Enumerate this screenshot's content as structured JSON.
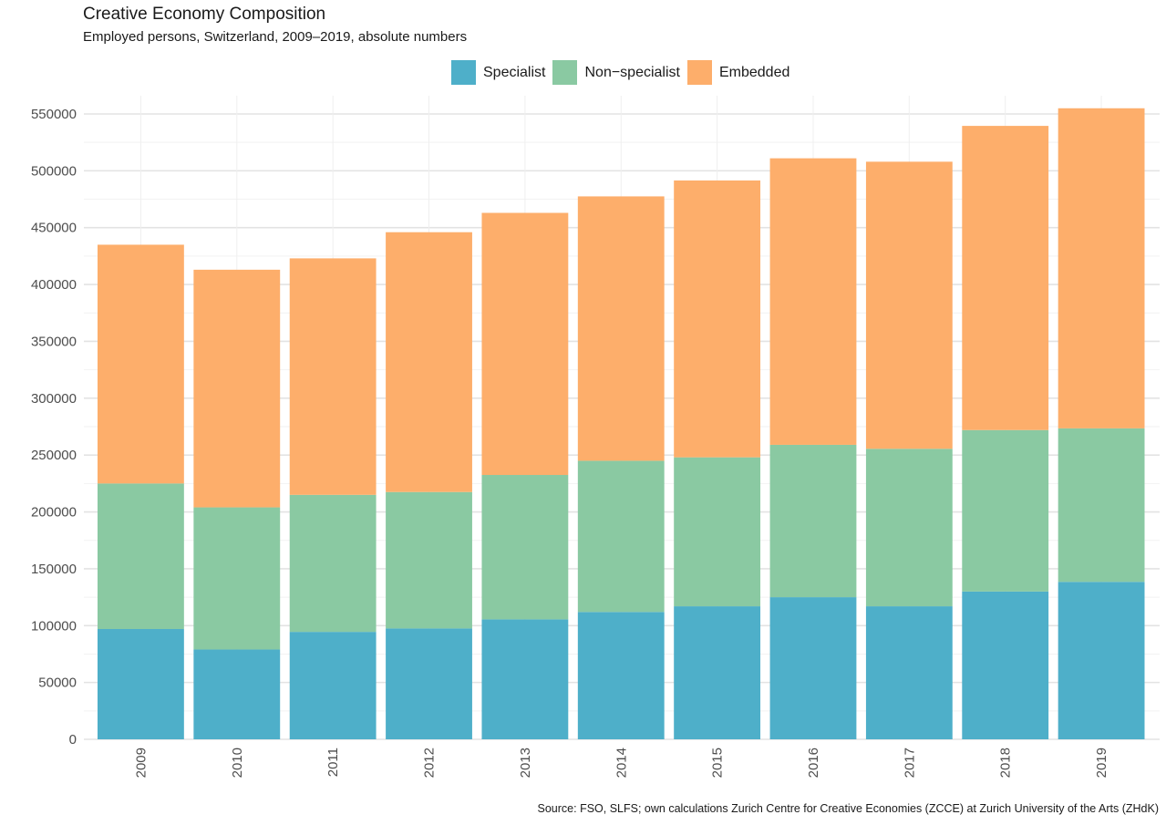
{
  "chart_data": {
    "type": "bar",
    "stacked": true,
    "title": "Creative Economy Composition",
    "subtitle": "Employed persons, Switzerland, 2009–2019, absolute numbers",
    "caption": "Source: FSO, SLFS; own calculations Zurich Centre for Creative Economies (ZCCE) at Zurich University of the Arts (ZHdK)",
    "xlabel": "",
    "ylabel": "",
    "categories": [
      "2009",
      "2010",
      "2011",
      "2012",
      "2013",
      "2014",
      "2015",
      "2016",
      "2017",
      "2018",
      "2019"
    ],
    "series": [
      {
        "name": "Specialist",
        "color": "#4EAFC9",
        "values": [
          97000,
          79000,
          94500,
          97500,
          105500,
          112000,
          117000,
          125000,
          117000,
          130000,
          138500
        ]
      },
      {
        "name": "Non−specialist",
        "color": "#8AC9A2",
        "values": [
          128000,
          125000,
          120500,
          120000,
          127000,
          133000,
          131000,
          134000,
          138500,
          142000,
          135000
        ]
      },
      {
        "name": "Embedded",
        "color": "#FDAE6B",
        "values": [
          210000,
          209000,
          208000,
          228500,
          230500,
          232500,
          243500,
          252000,
          252500,
          267500,
          281500
        ]
      }
    ],
    "ylim": [
      0,
      565000
    ],
    "yticks": [
      0,
      50000,
      100000,
      150000,
      200000,
      250000,
      300000,
      350000,
      400000,
      450000,
      500000,
      550000
    ],
    "ytick_labels": [
      "0",
      "50000",
      "100000",
      "150000",
      "200000",
      "250000",
      "300000",
      "350000",
      "400000",
      "450000",
      "500000",
      "550000"
    ],
    "grid": true,
    "legend_position": "top",
    "gridline_color": "#e5e5e5"
  }
}
